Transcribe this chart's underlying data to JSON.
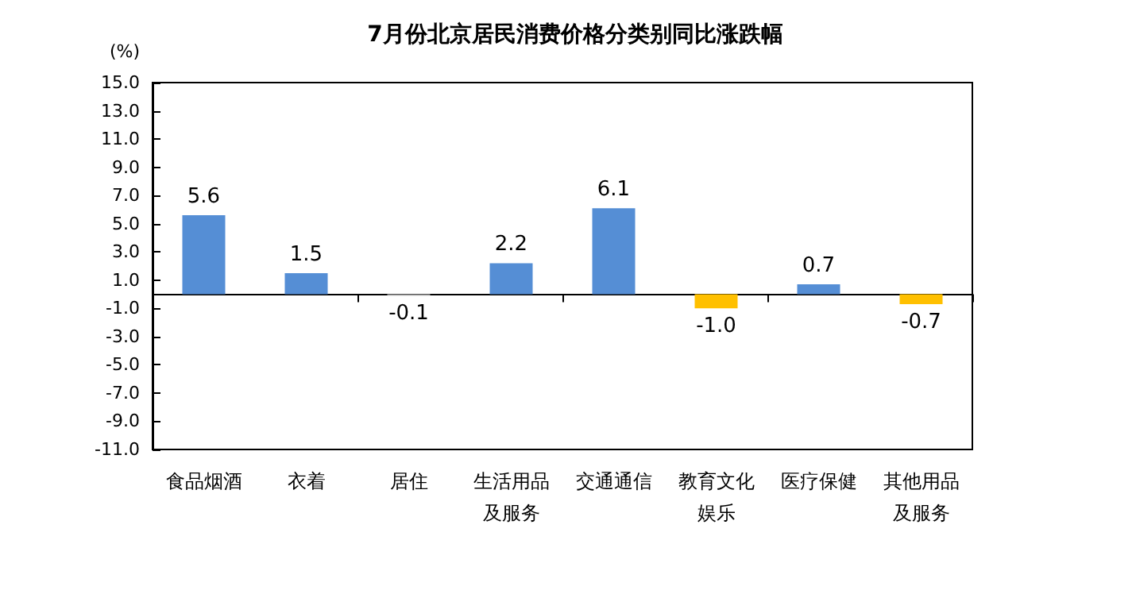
{
  "chart_data": {
    "type": "bar",
    "title": "7月份北京居民消费价格分类别同比涨跌幅",
    "ylabel": "(%)",
    "categories": [
      "食品烟酒",
      "衣着",
      "居住",
      "生活用品及服务",
      "交通通信",
      "教育文化娱乐",
      "医疗保健",
      "其他用品及服务"
    ],
    "values": [
      5.6,
      1.5,
      -0.1,
      2.2,
      6.1,
      -1.0,
      0.7,
      -0.7
    ],
    "value_labels": [
      "5.6",
      "1.5",
      "-0.1",
      "2.2",
      "6.1",
      "-1.0",
      "0.7",
      "-0.7"
    ],
    "colors": [
      "#558ed5",
      "#558ed5",
      "#a6a6a6",
      "#558ed5",
      "#558ed5",
      "#ffc000",
      "#558ed5",
      "#ffc000"
    ],
    "ylim": [
      -11,
      15
    ],
    "yticks": [
      {
        "value": -11,
        "label": "-11.0"
      },
      {
        "value": -9,
        "label": "-9.0"
      },
      {
        "value": -7,
        "label": "-7.0"
      },
      {
        "value": -5,
        "label": "-5.0"
      },
      {
        "value": -3,
        "label": "-3.0"
      },
      {
        "value": -1,
        "label": "-1.0"
      },
      {
        "value": 1,
        "label": "1.0"
      },
      {
        "value": 3,
        "label": "3.0"
      },
      {
        "value": 5,
        "label": "5.0"
      },
      {
        "value": 7,
        "label": "7.0"
      },
      {
        "value": 9,
        "label": "9.0"
      },
      {
        "value": 11,
        "label": "11.0"
      },
      {
        "value": 13,
        "label": "13.0"
      },
      {
        "value": 15,
        "label": "15.0"
      }
    ],
    "grid": false
  }
}
